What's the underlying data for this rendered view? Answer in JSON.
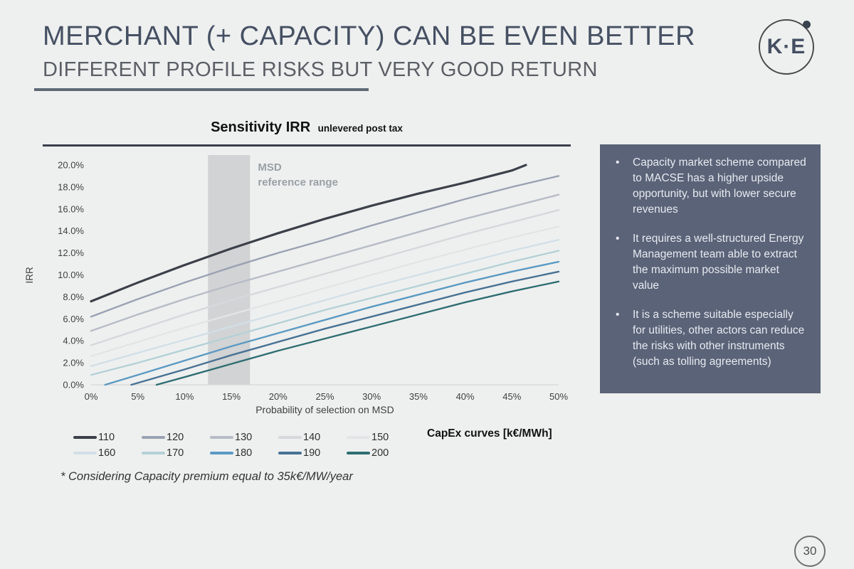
{
  "slide": {
    "title": "MERCHANT (+ CAPACITY) CAN BE EVEN BETTER",
    "subtitle": "DIFFERENT PROFILE RISKS BUT VERY GOOD RETURN",
    "logo_text": "K·E",
    "footnote": "* Considering Capacity premium equal to 35k€/MW/year",
    "page_number": "30"
  },
  "chart_data": {
    "type": "line",
    "title": "Sensitivity IRR",
    "title_suffix": "unlevered post tax",
    "xlabel": "Probability of selection on MSD",
    "ylabel": "IRR",
    "xlim": [
      0,
      50
    ],
    "ylim": [
      0,
      20
    ],
    "x_ticks": [
      "0%",
      "5%",
      "10%",
      "15%",
      "20%",
      "25%",
      "30%",
      "35%",
      "40%",
      "45%",
      "50%"
    ],
    "x_tick_values": [
      0,
      5,
      10,
      15,
      20,
      25,
      30,
      35,
      40,
      45,
      50
    ],
    "y_ticks": [
      "0.0%",
      "2.0%",
      "4.0%",
      "6.0%",
      "8.0%",
      "10.0%",
      "12.0%",
      "14.0%",
      "16.0%",
      "18.0%",
      "20.0%"
    ],
    "y_tick_values": [
      0,
      2,
      4,
      6,
      8,
      10,
      12,
      14,
      16,
      18,
      20
    ],
    "legend_title": "CapEx curves [k€/MWh]",
    "legend_position": "bottom",
    "grid": false,
    "annotation": {
      "lines": [
        "MSD",
        "reference range"
      ],
      "x_from": 12.5,
      "x_to": 17
    },
    "colors": {
      "band": "#d2d3d4",
      "annotation_text": "#9aa0a5",
      "axis_line": "#d8d9d9",
      "tick_text": "#3f3f3f"
    },
    "series": [
      {
        "name": "110",
        "color": "#3c4049",
        "width": 3.2,
        "points": [
          [
            0,
            7.6
          ],
          [
            5,
            9.3
          ],
          [
            10,
            10.9
          ],
          [
            15,
            12.4
          ],
          [
            20,
            13.8
          ],
          [
            25,
            15.1
          ],
          [
            30,
            16.3
          ],
          [
            35,
            17.4
          ],
          [
            40,
            18.4
          ],
          [
            45,
            19.5
          ],
          [
            46.5,
            20.0
          ]
        ]
      },
      {
        "name": "120",
        "color": "#9aa2b3",
        "width": 2.4,
        "points": [
          [
            0,
            6.2
          ],
          [
            5,
            7.8
          ],
          [
            10,
            9.3
          ],
          [
            15,
            10.7
          ],
          [
            20,
            12.0
          ],
          [
            25,
            13.2
          ],
          [
            30,
            14.5
          ],
          [
            35,
            15.7
          ],
          [
            40,
            16.9
          ],
          [
            45,
            18.0
          ],
          [
            50,
            19.0
          ]
        ]
      },
      {
        "name": "130",
        "color": "#b7bcc6",
        "width": 2.4,
        "points": [
          [
            0,
            4.9
          ],
          [
            5,
            6.4
          ],
          [
            10,
            7.8
          ],
          [
            15,
            9.1
          ],
          [
            20,
            10.3
          ],
          [
            25,
            11.5
          ],
          [
            30,
            12.7
          ],
          [
            35,
            13.9
          ],
          [
            40,
            15.1
          ],
          [
            45,
            16.2
          ],
          [
            50,
            17.3
          ]
        ]
      },
      {
        "name": "140",
        "color": "#d6d8dc",
        "width": 2.4,
        "points": [
          [
            0,
            3.6
          ],
          [
            5,
            5.0
          ],
          [
            10,
            6.4
          ],
          [
            15,
            7.7
          ],
          [
            20,
            8.9
          ],
          [
            25,
            10.1
          ],
          [
            30,
            11.3
          ],
          [
            35,
            12.5
          ],
          [
            40,
            13.7
          ],
          [
            45,
            14.8
          ],
          [
            50,
            15.9
          ]
        ]
      },
      {
        "name": "150",
        "color": "#e3e4e6",
        "width": 2.4,
        "points": [
          [
            0,
            2.6
          ],
          [
            5,
            3.9
          ],
          [
            10,
            5.2
          ],
          [
            15,
            6.4
          ],
          [
            20,
            7.6
          ],
          [
            25,
            8.8
          ],
          [
            30,
            10.0
          ],
          [
            35,
            11.2
          ],
          [
            40,
            12.3
          ],
          [
            45,
            13.4
          ],
          [
            50,
            14.4
          ]
        ]
      },
      {
        "name": "160",
        "color": "#d2dfe7",
        "width": 2.4,
        "points": [
          [
            0,
            1.7
          ],
          [
            5,
            2.9
          ],
          [
            10,
            4.1
          ],
          [
            15,
            5.3
          ],
          [
            20,
            6.5
          ],
          [
            25,
            7.7
          ],
          [
            30,
            8.9
          ],
          [
            35,
            10.0
          ],
          [
            40,
            11.1
          ],
          [
            45,
            12.2
          ],
          [
            50,
            13.2
          ]
        ]
      },
      {
        "name": "170",
        "color": "#b3d1d7",
        "width": 2.4,
        "points": [
          [
            0,
            0.9
          ],
          [
            5,
            2.0
          ],
          [
            10,
            3.2
          ],
          [
            15,
            4.4
          ],
          [
            20,
            5.6
          ],
          [
            25,
            6.8
          ],
          [
            30,
            7.9
          ],
          [
            35,
            9.0
          ],
          [
            40,
            10.1
          ],
          [
            45,
            11.2
          ],
          [
            50,
            12.2
          ]
        ]
      },
      {
        "name": "180",
        "color": "#5b9ac3",
        "width": 2.4,
        "points": [
          [
            1.5,
            0
          ],
          [
            5,
            0.9
          ],
          [
            10,
            2.2
          ],
          [
            15,
            3.5
          ],
          [
            20,
            4.7
          ],
          [
            25,
            5.9
          ],
          [
            30,
            7.1
          ],
          [
            35,
            8.2
          ],
          [
            40,
            9.3
          ],
          [
            45,
            10.3
          ],
          [
            50,
            11.2
          ]
        ]
      },
      {
        "name": "190",
        "color": "#497295",
        "width": 2.4,
        "points": [
          [
            4.3,
            0
          ],
          [
            10,
            1.4
          ],
          [
            15,
            2.7
          ],
          [
            20,
            3.9
          ],
          [
            25,
            5.1
          ],
          [
            30,
            6.2
          ],
          [
            35,
            7.3
          ],
          [
            40,
            8.4
          ],
          [
            45,
            9.4
          ],
          [
            50,
            10.3
          ]
        ]
      },
      {
        "name": "200",
        "color": "#2f6e72",
        "width": 2.4,
        "points": [
          [
            7,
            0
          ],
          [
            10,
            0.7
          ],
          [
            15,
            1.9
          ],
          [
            20,
            3.1
          ],
          [
            25,
            4.2
          ],
          [
            30,
            5.3
          ],
          [
            35,
            6.4
          ],
          [
            40,
            7.5
          ],
          [
            45,
            8.5
          ],
          [
            50,
            9.4
          ]
        ]
      }
    ]
  },
  "insights": {
    "panel_color": "#5a6377",
    "bullets": [
      "Capacity market scheme compared to MACSE has a higher upside opportunity, but with lower secure revenues",
      "It requires a well-structured Energy Management team able to extract the maximum possible market value",
      "It is a scheme suitable especially for utilities, other actors can reduce the risks with other instruments (such as tolling agreements)"
    ]
  }
}
